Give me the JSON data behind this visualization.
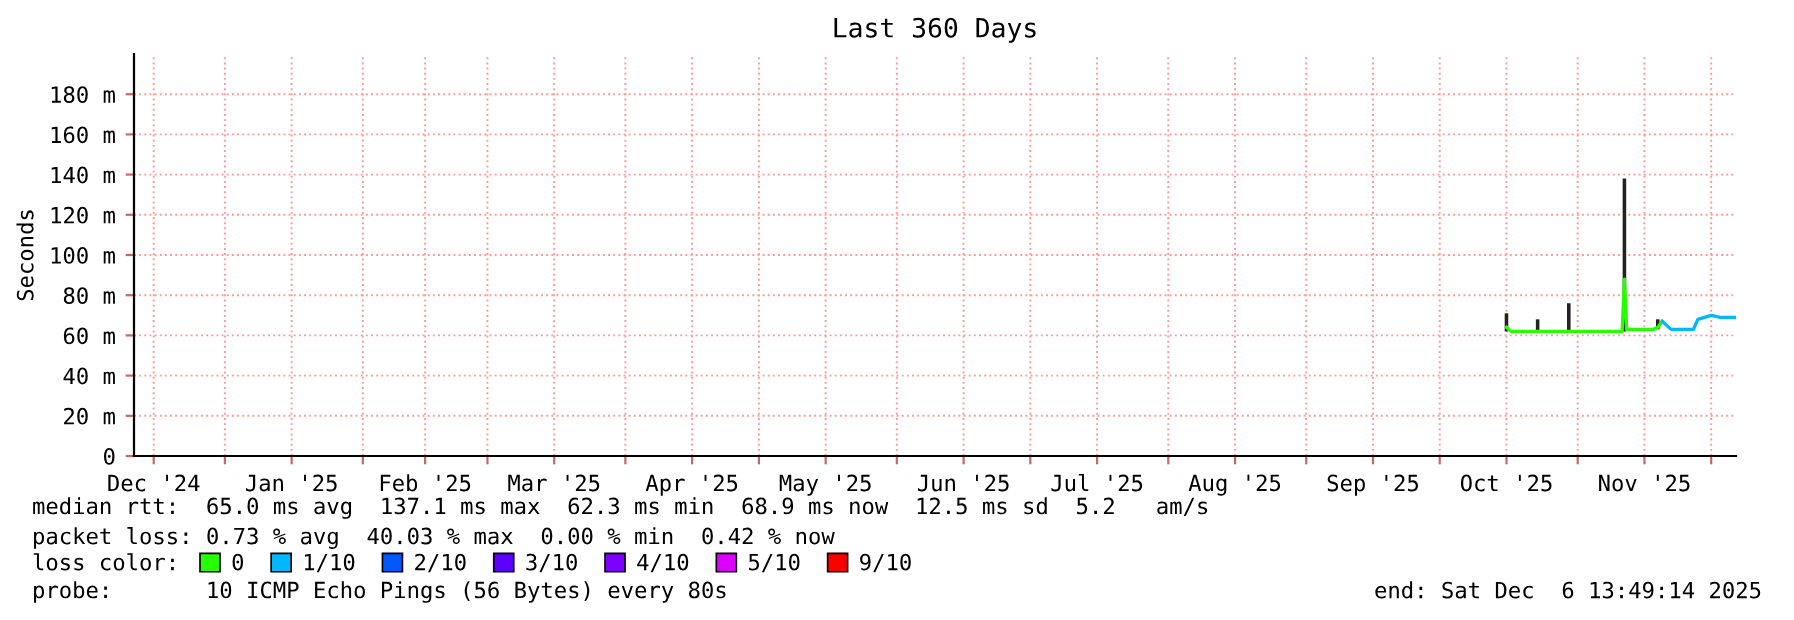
{
  "chart_data": {
    "type": "line",
    "title": "Last 360 Days",
    "ylabel": "Seconds",
    "x": [
      "2025-10-16",
      "2025-10-17",
      "2025-10-22",
      "2025-10-23",
      "2025-10-24",
      "2025-10-29",
      "2025-10-30",
      "2025-10-31",
      "2025-11-05",
      "2025-11-11",
      "2025-11-11T12:00",
      "2025-11-12",
      "2025-11-15",
      "2025-11-18",
      "2025-11-19",
      "2025-11-20",
      "2025-11-22",
      "2025-11-25",
      "2025-11-27",
      "2025-11-28",
      "2025-12-01",
      "2025-12-03",
      "2025-12-06T12:00"
    ],
    "series": [
      {
        "type": "bar",
        "color": "#222222",
        "base": [
          62,
          null,
          null,
          62,
          null,
          null,
          62,
          null,
          null,
          null,
          62,
          null,
          null,
          null,
          63,
          null,
          null,
          null,
          null,
          null,
          null,
          null,
          null
        ],
        "values": [
          9,
          null,
          null,
          6,
          null,
          null,
          14,
          null,
          null,
          null,
          76,
          null,
          null,
          null,
          5,
          null,
          null,
          null,
          null,
          null,
          null,
          null,
          null
        ]
      },
      {
        "name": "0",
        "color": "#26ff00",
        "values": [
          64,
          62,
          62,
          62,
          62,
          62,
          62,
          62,
          62,
          62,
          88,
          63,
          63,
          63,
          64,
          67,
          null,
          null,
          null,
          null,
          null,
          null,
          null
        ]
      },
      {
        "name": "1/10",
        "color": "#00b8ff",
        "values": [
          null,
          null,
          null,
          null,
          null,
          null,
          null,
          null,
          null,
          null,
          null,
          null,
          null,
          null,
          null,
          67,
          63,
          63,
          63,
          68,
          70,
          69,
          69
        ]
      },
      {
        "name": "2/10",
        "color": "#0059ff",
        "values": [
          null,
          null,
          null,
          null,
          null,
          null,
          null,
          null,
          null,
          null,
          null,
          null,
          null,
          null,
          null,
          null,
          null,
          null,
          null,
          null,
          null,
          null,
          null
        ]
      },
      {
        "name": "3/10",
        "color": "#5e00ff",
        "values": [
          null,
          null,
          null,
          null,
          null,
          null,
          null,
          null,
          null,
          null,
          null,
          null,
          null,
          null,
          null,
          null,
          null,
          null,
          null,
          null,
          null,
          null,
          null
        ]
      },
      {
        "name": "4/10",
        "color": "#7e00ff",
        "values": [
          null,
          null,
          null,
          null,
          null,
          null,
          null,
          null,
          null,
          null,
          null,
          null,
          null,
          null,
          null,
          null,
          null,
          null,
          null,
          null,
          null,
          null,
          null
        ]
      },
      {
        "name": "5/10",
        "color": "#dd00ff",
        "values": [
          null,
          null,
          null,
          null,
          null,
          null,
          null,
          null,
          null,
          null,
          null,
          null,
          null,
          null,
          null,
          null,
          null,
          null,
          null,
          null,
          null,
          null,
          null
        ]
      },
      {
        "name": "9/10",
        "color": "#ff0000",
        "values": [
          null,
          null,
          null,
          null,
          null,
          null,
          null,
          null,
          null,
          null,
          null,
          null,
          null,
          null,
          null,
          null,
          null,
          null,
          null,
          null,
          null,
          null,
          null
        ]
      }
    ],
    "xlim": [
      "2024-12-11T13:49",
      "2025-12-06T13:49"
    ],
    "xticks": [
      {
        "value": "2024-12-16",
        "label": "Dec '24"
      },
      {
        "value": "2025-01-01",
        "label": null
      },
      {
        "value": "2025-01-16",
        "label": "Jan '25"
      },
      {
        "value": "2025-02-01",
        "label": null
      },
      {
        "value": "2025-02-15",
        "label": "Feb '25"
      },
      {
        "value": "2025-03-01",
        "label": null
      },
      {
        "value": "2025-03-16",
        "label": "Mar '25"
      },
      {
        "value": "2025-04-01",
        "label": null
      },
      {
        "value": "2025-04-16",
        "label": "Apr '25"
      },
      {
        "value": "2025-05-01",
        "label": null
      },
      {
        "value": "2025-05-16",
        "label": "May '25"
      },
      {
        "value": "2025-06-01",
        "label": null
      },
      {
        "value": "2025-06-16",
        "label": "Jun '25"
      },
      {
        "value": "2025-07-01",
        "label": null
      },
      {
        "value": "2025-07-16",
        "label": "Jul '25"
      },
      {
        "value": "2025-08-01",
        "label": null
      },
      {
        "value": "2025-08-16",
        "label": "Aug '25"
      },
      {
        "value": "2025-09-01",
        "label": null
      },
      {
        "value": "2025-09-16",
        "label": "Sep '25"
      },
      {
        "value": "2025-10-01",
        "label": null
      },
      {
        "value": "2025-10-16",
        "label": "Oct '25"
      },
      {
        "value": "2025-11-01",
        "label": null
      },
      {
        "value": "2025-11-16",
        "label": "Nov '25"
      },
      {
        "value": "2025-12-01",
        "label": null
      }
    ],
    "ylim": [
      0,
      200
    ],
    "yticks": [
      0,
      {
        "value": 20,
        "label": "20 m"
      },
      {
        "value": 40,
        "label": "40 m"
      },
      {
        "value": 60,
        "label": "60 m"
      },
      {
        "value": 80,
        "label": "80 m"
      },
      {
        "value": 100,
        "label": "100 m"
      },
      {
        "value": 120,
        "label": "120 m"
      },
      {
        "value": 140,
        "label": "140 m"
      },
      {
        "value": 160,
        "label": "160 m"
      },
      {
        "value": 180,
        "label": "180 m"
      }
    ],
    "grid": true,
    "legend": "bottom",
    "legend_title": "loss color:",
    "annotations": [
      "median rtt:  65.0 ms avg  137.1 ms max  62.3 ms min  68.9 ms now  12.5 ms sd  5.2   am/s",
      "packet loss: 0.73 % avg  40.03 % max  0.00 % min  0.42 % now",
      "probe:       10 ICMP Echo Pings (56 Bytes) every 80s",
      "end: Sat Dec  6 13:49:14 2025"
    ]
  }
}
